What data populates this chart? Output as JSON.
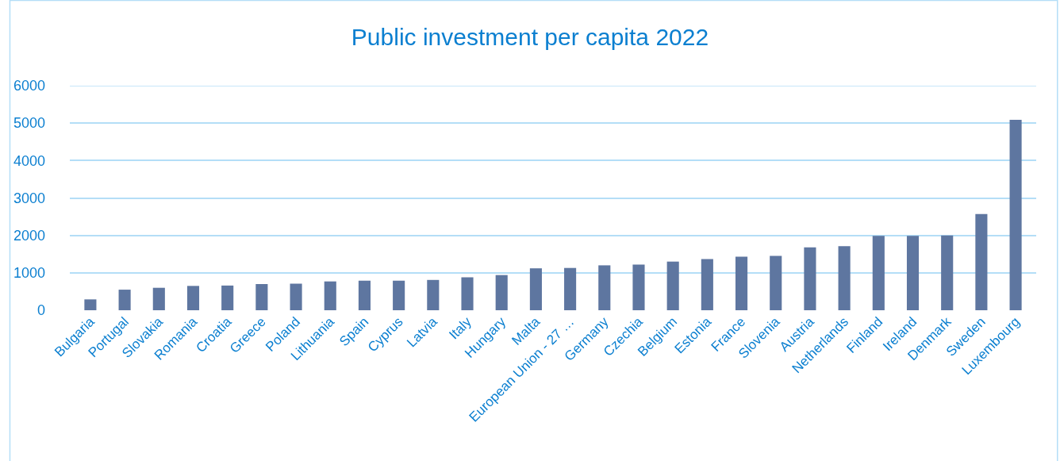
{
  "chart_data": {
    "type": "bar",
    "title": "Public investment per capita 2022",
    "categories": [
      "Bulgaria",
      "Portugal",
      "Slovakia",
      "Romania",
      "Croatia",
      "Greece",
      "Poland",
      "Lithuania",
      "Spain",
      "Cyprus",
      "Latvia",
      "Italy",
      "Hungary",
      "Malta",
      "European Union - 27 …",
      "Germany",
      "Czechia",
      "Belgium",
      "Estonia",
      "France",
      "Slovenia",
      "Austria",
      "Netherlands",
      "Finland",
      "Ireland",
      "Denmark",
      "Sweden",
      "Luxembourg"
    ],
    "values": [
      290,
      550,
      600,
      650,
      660,
      700,
      710,
      770,
      790,
      790,
      810,
      880,
      940,
      1120,
      1130,
      1200,
      1220,
      1300,
      1370,
      1430,
      1450,
      1680,
      1710,
      1990,
      1990,
      2000,
      2570,
      5090
    ],
    "color": "#5e76a0",
    "ylim": [
      0,
      6000
    ],
    "yticks": [
      0,
      1000,
      2000,
      3000,
      4000,
      5000,
      6000
    ],
    "grid": "y"
  }
}
